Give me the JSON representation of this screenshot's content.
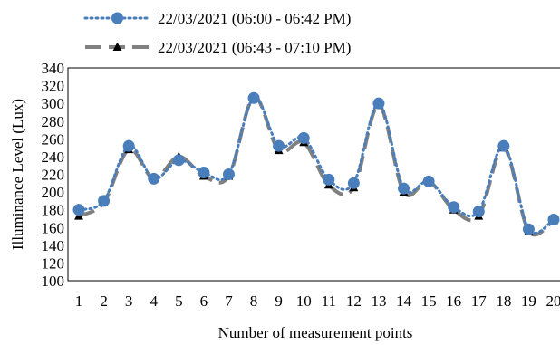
{
  "chart_data": {
    "type": "line",
    "x": [
      1,
      2,
      3,
      4,
      5,
      6,
      7,
      8,
      9,
      10,
      11,
      12,
      13,
      14,
      15,
      16,
      17,
      18,
      19,
      20
    ],
    "xlabel": "Number of measurement points",
    "ylabel": "Illuminance Level (Lux)",
    "ylim": [
      100,
      340
    ],
    "yticks": [
      100,
      120,
      140,
      160,
      180,
      200,
      220,
      240,
      260,
      280,
      300,
      320,
      340
    ],
    "grid": false,
    "legend_position": "top",
    "series": [
      {
        "name": "22/03/2021 (06:00 - 06:42 PM)",
        "color": "#4A7EBB",
        "marker": "circle",
        "line_style": "dotted",
        "values": [
          180,
          190,
          252,
          215,
          236,
          222,
          220,
          306,
          252,
          261,
          214,
          210,
          300,
          204,
          212,
          183,
          178,
          252,
          158,
          169
        ]
      },
      {
        "name": "22/03/2021 (06:43 - 07:10 PM)",
        "color": "#808080",
        "marker": "triangle",
        "line_style": "dashed",
        "values": [
          173,
          188,
          248,
          215,
          240,
          218,
          218,
          307,
          247,
          256,
          208,
          205,
          298,
          200,
          212,
          180,
          173,
          250,
          156,
          168
        ]
      }
    ]
  }
}
